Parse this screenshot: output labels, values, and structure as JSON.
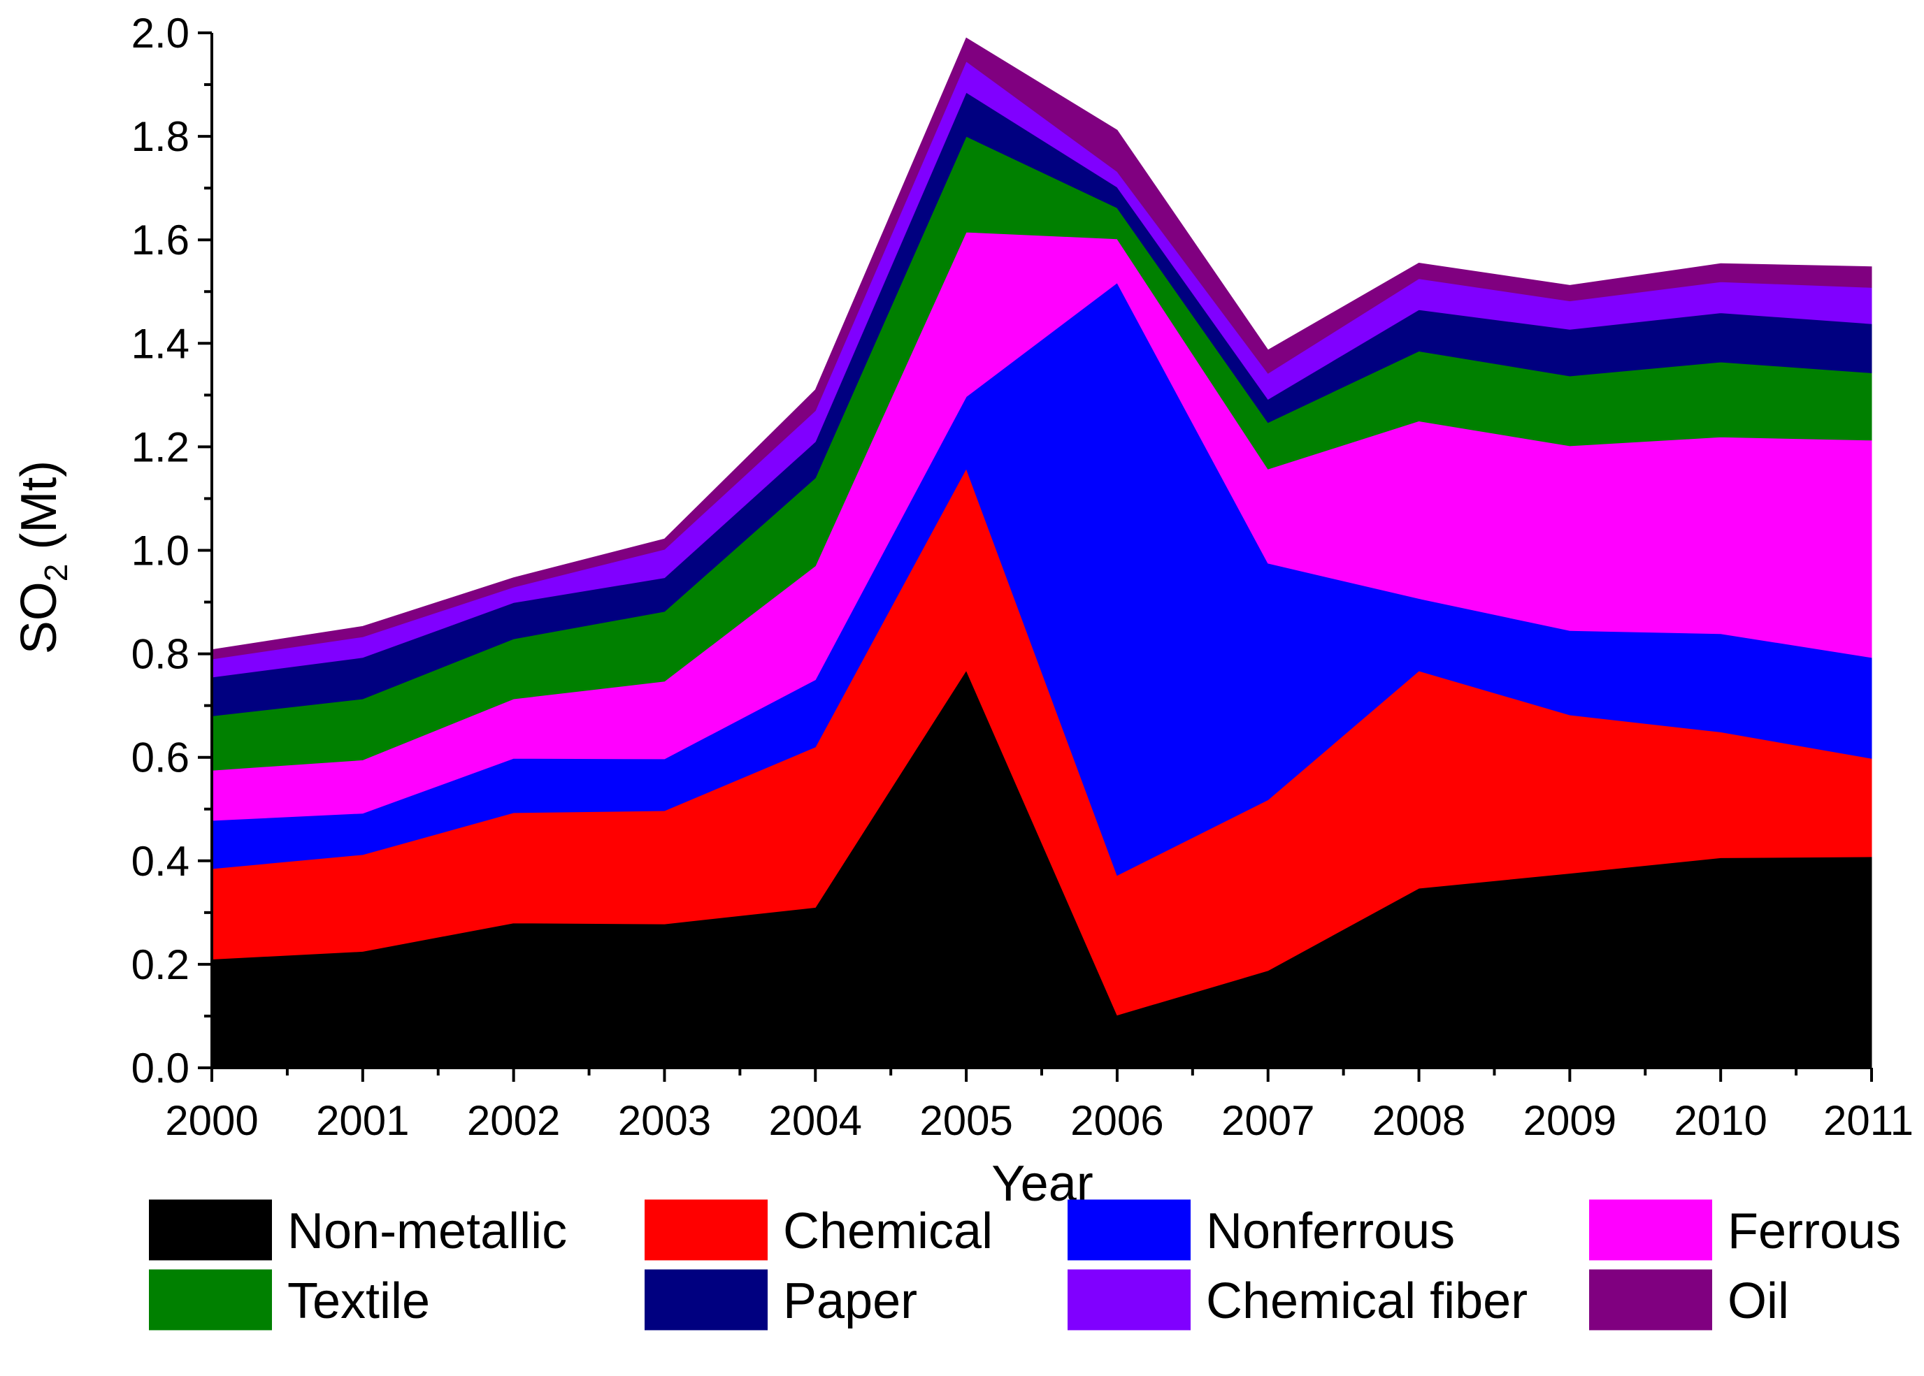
{
  "chart_data": {
    "type": "area",
    "stacked": true,
    "title": "",
    "xlabel": "Year",
    "ylabel_main": "SO",
    "ylabel_subscript": "2",
    "ylabel_unit": " (Mt)",
    "x": [
      "2000",
      "2001",
      "2002",
      "2003",
      "2004",
      "2005",
      "2006",
      "2007",
      "2008",
      "2009",
      "2010",
      "2011"
    ],
    "ylim": [
      0,
      2.0
    ],
    "yticks": [
      "0.0",
      "0.2",
      "0.4",
      "0.6",
      "0.8",
      "1.0",
      "1.2",
      "1.4",
      "1.6",
      "1.8",
      "2.0"
    ],
    "legend_position": "bottom",
    "series": [
      {
        "name": "Non-metallic",
        "color": "#000000",
        "values": [
          0.21,
          0.225,
          0.28,
          0.278,
          0.31,
          0.768,
          0.102,
          0.188,
          0.347,
          0.376,
          0.406,
          0.408
        ]
      },
      {
        "name": "Chemical",
        "color": "#ff0000",
        "values": [
          0.175,
          0.187,
          0.213,
          0.219,
          0.31,
          0.39,
          0.27,
          0.33,
          0.42,
          0.306,
          0.243,
          0.19
        ]
      },
      {
        "name": "Nonferrous",
        "color": "#0000ff",
        "values": [
          0.093,
          0.08,
          0.105,
          0.1,
          0.13,
          0.139,
          1.145,
          0.457,
          0.14,
          0.163,
          0.19,
          0.195
        ]
      },
      {
        "name": "Ferrous",
        "color": "#ff00ff",
        "values": [
          0.097,
          0.103,
          0.115,
          0.15,
          0.22,
          0.318,
          0.085,
          0.182,
          0.343,
          0.357,
          0.38,
          0.42
        ]
      },
      {
        "name": "Textile",
        "color": "#008000",
        "values": [
          0.105,
          0.118,
          0.116,
          0.135,
          0.17,
          0.185,
          0.06,
          0.09,
          0.135,
          0.135,
          0.145,
          0.13
        ]
      },
      {
        "name": "Paper",
        "color": "#000080",
        "values": [
          0.075,
          0.08,
          0.07,
          0.065,
          0.07,
          0.085,
          0.04,
          0.045,
          0.08,
          0.09,
          0.095,
          0.095
        ]
      },
      {
        "name": "Chemical fiber",
        "color": "#8000ff",
        "values": [
          0.035,
          0.04,
          0.03,
          0.055,
          0.06,
          0.06,
          0.03,
          0.05,
          0.06,
          0.055,
          0.06,
          0.07
        ]
      },
      {
        "name": "Oil",
        "color": "#800080",
        "values": [
          0.018,
          0.02,
          0.018,
          0.02,
          0.04,
          0.045,
          0.08,
          0.045,
          0.03,
          0.03,
          0.035,
          0.04
        ]
      }
    ]
  }
}
